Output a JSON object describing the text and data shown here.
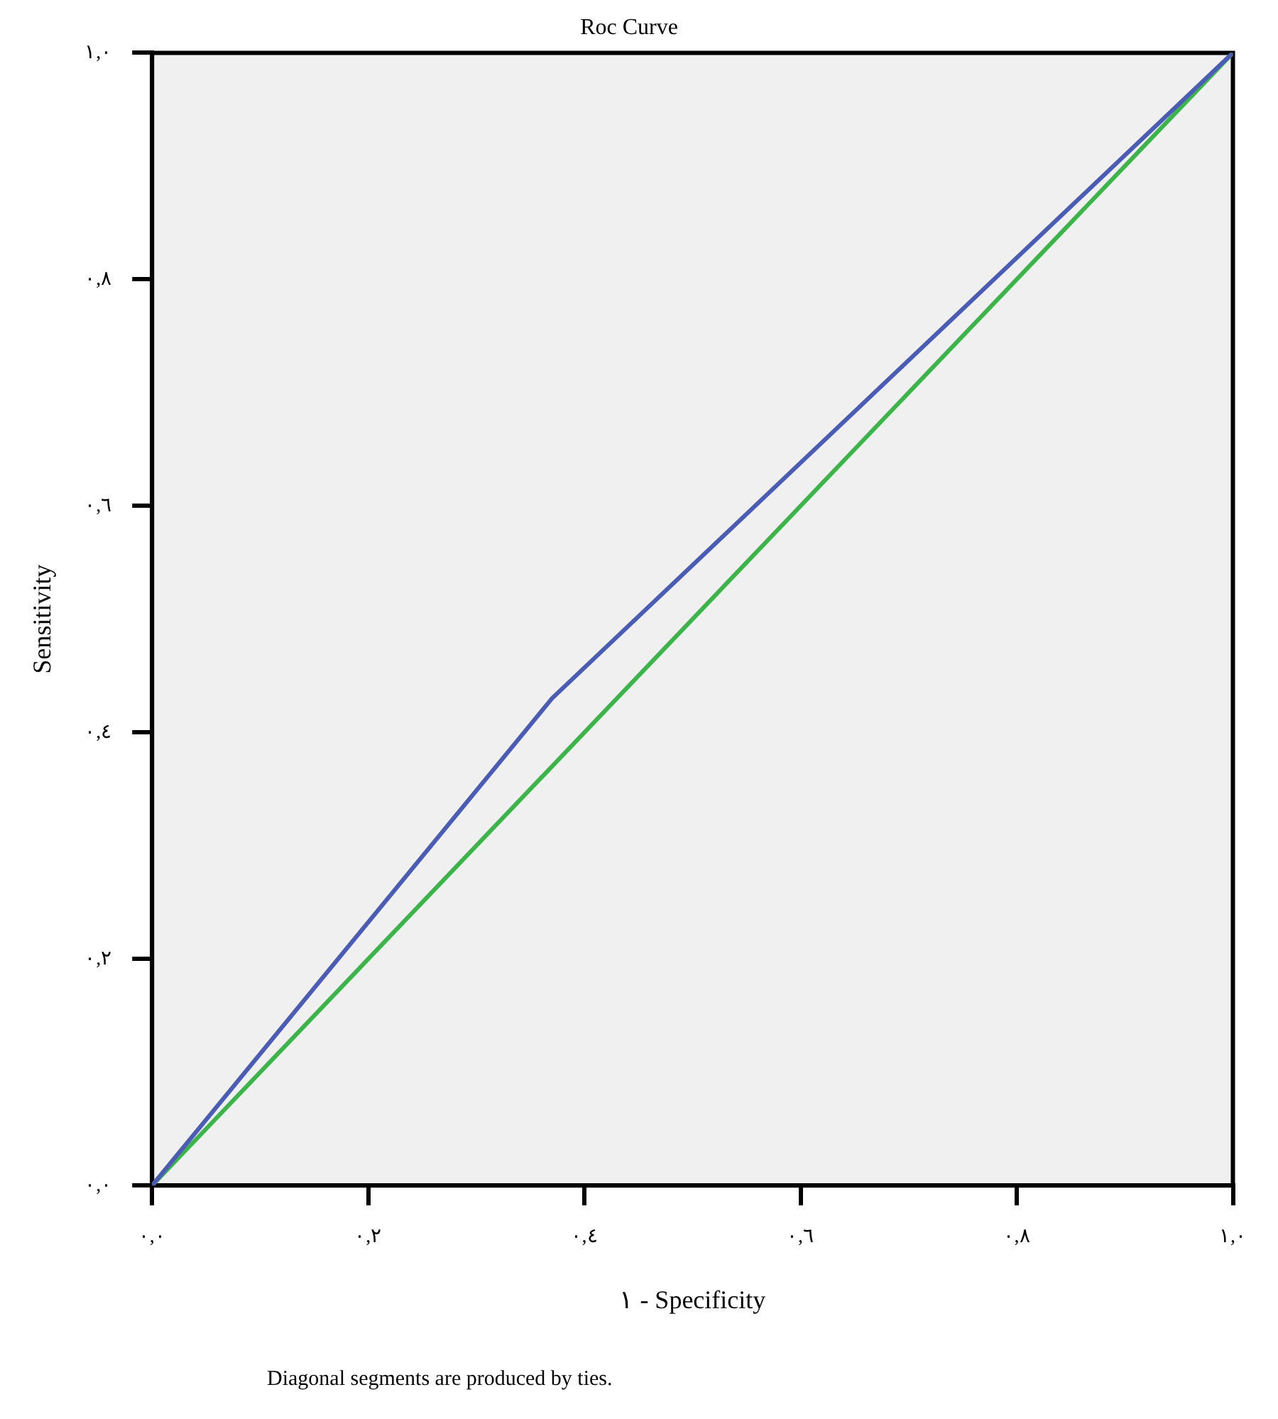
{
  "chart_data": {
    "type": "line",
    "title": "Roc Curve",
    "xlabel": "١ - Specificity",
    "ylabel": "Sensitivity",
    "xlim": [
      0,
      1
    ],
    "ylim": [
      0,
      1
    ],
    "xticks": [
      {
        "value": 0,
        "label": "٠,٠"
      },
      {
        "value": 0.2,
        "label": "٠,٢"
      },
      {
        "value": 0.4,
        "label": "٠,٤"
      },
      {
        "value": 0.6,
        "label": "٠,٦"
      },
      {
        "value": 0.8,
        "label": "٠,٨"
      },
      {
        "value": 1,
        "label": "١,٠"
      }
    ],
    "yticks": [
      {
        "value": 0,
        "label": "٠,٠"
      },
      {
        "value": 0.2,
        "label": "٠,٢"
      },
      {
        "value": 0.4,
        "label": "٠,٤"
      },
      {
        "value": 0.6,
        "label": "٠,٦"
      },
      {
        "value": 0.8,
        "label": "٠,٨"
      },
      {
        "value": 1,
        "label": "١,٠"
      }
    ],
    "grid": false,
    "legend": false,
    "marker": "none",
    "line_style": "solid",
    "series": [
      {
        "color": "#4a5cb4",
        "x": [
          0,
          0.37,
          1
        ],
        "values": [
          0,
          0.43,
          1
        ]
      },
      {
        "color": "#3cb44a",
        "x": [
          0,
          1
        ],
        "values": [
          0,
          1
        ]
      }
    ],
    "annotations": [
      "Diagonal segments are produced by ties."
    ]
  }
}
